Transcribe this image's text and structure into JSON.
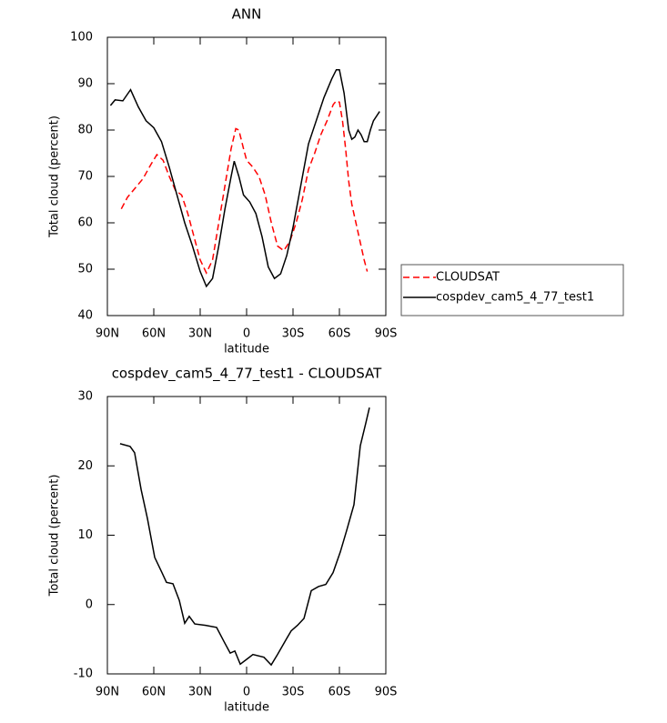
{
  "chart_data": [
    {
      "type": "line",
      "title": "ANN",
      "xlabel": "latitude",
      "ylabel": "Total cloud (percent)",
      "xlim": [
        90,
        -90
      ],
      "xticks": [
        {
          "value": 90,
          "label": "90N"
        },
        {
          "value": 60,
          "label": "60N"
        },
        {
          "value": 30,
          "label": "30N"
        },
        0,
        {
          "value": -30,
          "label": "30S"
        },
        {
          "value": -60,
          "label": "60S"
        },
        {
          "value": -90,
          "label": "90S"
        }
      ],
      "ylim": [
        40,
        100
      ],
      "yticks": [
        40,
        50,
        60,
        70,
        80,
        90,
        100
      ],
      "legend": "right",
      "series": [
        {
          "name": "CLOUDSAT",
          "color": "#ff0000",
          "dash": "dashed",
          "x": [
            81,
            77,
            72,
            67,
            62,
            58,
            54,
            50,
            46,
            42,
            38,
            34,
            30,
            26,
            22,
            18,
            14,
            10,
            7,
            5,
            2,
            0,
            -4,
            -8,
            -12,
            -16,
            -20,
            -24,
            -28,
            -32,
            -36,
            -40,
            -44,
            -48,
            -52,
            -56,
            -58,
            -60,
            -62,
            -64,
            -66,
            -68,
            -70,
            -72,
            -74,
            -76,
            -78
          ],
          "values": [
            63,
            65.5,
            67.5,
            69.5,
            72.5,
            74.7,
            73.5,
            70,
            67,
            66,
            62,
            57,
            52,
            49.2,
            52,
            60,
            68,
            76,
            80.3,
            80,
            76,
            73.5,
            72,
            70,
            66,
            60,
            55,
            54,
            56,
            60,
            65,
            71.5,
            75,
            79,
            82,
            85.5,
            86.3,
            86,
            82,
            76,
            69,
            64,
            61,
            58,
            55,
            52,
            49.5
          ]
        },
        {
          "name": "cospdev_cam5_4_77_test1",
          "color": "#000000",
          "dash": "solid",
          "x": [
            88,
            85,
            80,
            75,
            70,
            65,
            60,
            55,
            50,
            45,
            40,
            35,
            30,
            26,
            22,
            18,
            14,
            10,
            8,
            5,
            2,
            -2,
            -6,
            -10,
            -14,
            -18,
            -22,
            -26,
            -30,
            -35,
            -40,
            -45,
            -50,
            -55,
            -58,
            -60,
            -63,
            -66,
            -68,
            -70,
            -72,
            -74,
            -76,
            -78,
            -80,
            -82,
            -86
          ],
          "values": [
            85.3,
            86.5,
            86.3,
            88.7,
            85,
            82,
            80.5,
            77.5,
            72,
            66,
            60,
            55,
            49.5,
            46.3,
            48,
            55,
            63,
            70,
            73.3,
            70,
            66,
            64.5,
            62,
            57,
            50.5,
            48,
            49,
            53,
            59,
            68,
            77,
            82,
            87,
            91,
            93,
            93,
            88,
            80,
            78,
            78.5,
            80,
            79,
            77.5,
            77.5,
            80,
            82,
            84
          ]
        }
      ]
    },
    {
      "type": "line",
      "title": "cospdev_cam5_4_77_test1 - CLOUDSAT",
      "xlabel": "latitude",
      "ylabel": "Total cloud (percent)",
      "xlim": [
        90,
        -90
      ],
      "xticks": [
        {
          "value": 90,
          "label": "90N"
        },
        {
          "value": 60,
          "label": "60N"
        },
        {
          "value": 30,
          "label": "30N"
        },
        0,
        {
          "value": -30,
          "label": "30S"
        },
        {
          "value": -60,
          "label": "60S"
        },
        {
          "value": -90,
          "label": "90S"
        }
      ],
      "ylim": [
        -10,
        30
      ],
      "yticks": [
        -10,
        0,
        10,
        20,
        30
      ],
      "color": "#000000",
      "x": [
        81.8,
        75.3,
        72.4,
        68.2,
        64.1,
        59.4,
        54.7,
        51.8,
        47.6,
        43.5,
        40,
        37.1,
        33.5,
        26.5,
        19.4,
        14.7,
        10.6,
        7.6,
        4.1,
        -0.6,
        -4.1,
        -11.2,
        -15.9,
        -20,
        -25.9,
        -28.8,
        -32.9,
        -37.1,
        -41.8,
        -46.5,
        -51.2,
        -55.9,
        -60.6,
        -64.7,
        -69.4,
        -73.5,
        -77.1,
        -79.4
      ],
      "values": [
        23.2,
        22.8,
        21.9,
        16.6,
        12.4,
        6.8,
        4.6,
        3.2,
        3,
        0.6,
        -2.7,
        -1.7,
        -2.8,
        -3,
        -3.3,
        -5.3,
        -7,
        -6.7,
        -8.6,
        -7.8,
        -7.2,
        -7.6,
        -8.7,
        -7.2,
        -4.9,
        -3.8,
        -3,
        -2,
        2,
        2.6,
        2.9,
        4.6,
        7.6,
        10.7,
        14.4,
        22.9,
        26.2,
        28.4
      ]
    }
  ]
}
